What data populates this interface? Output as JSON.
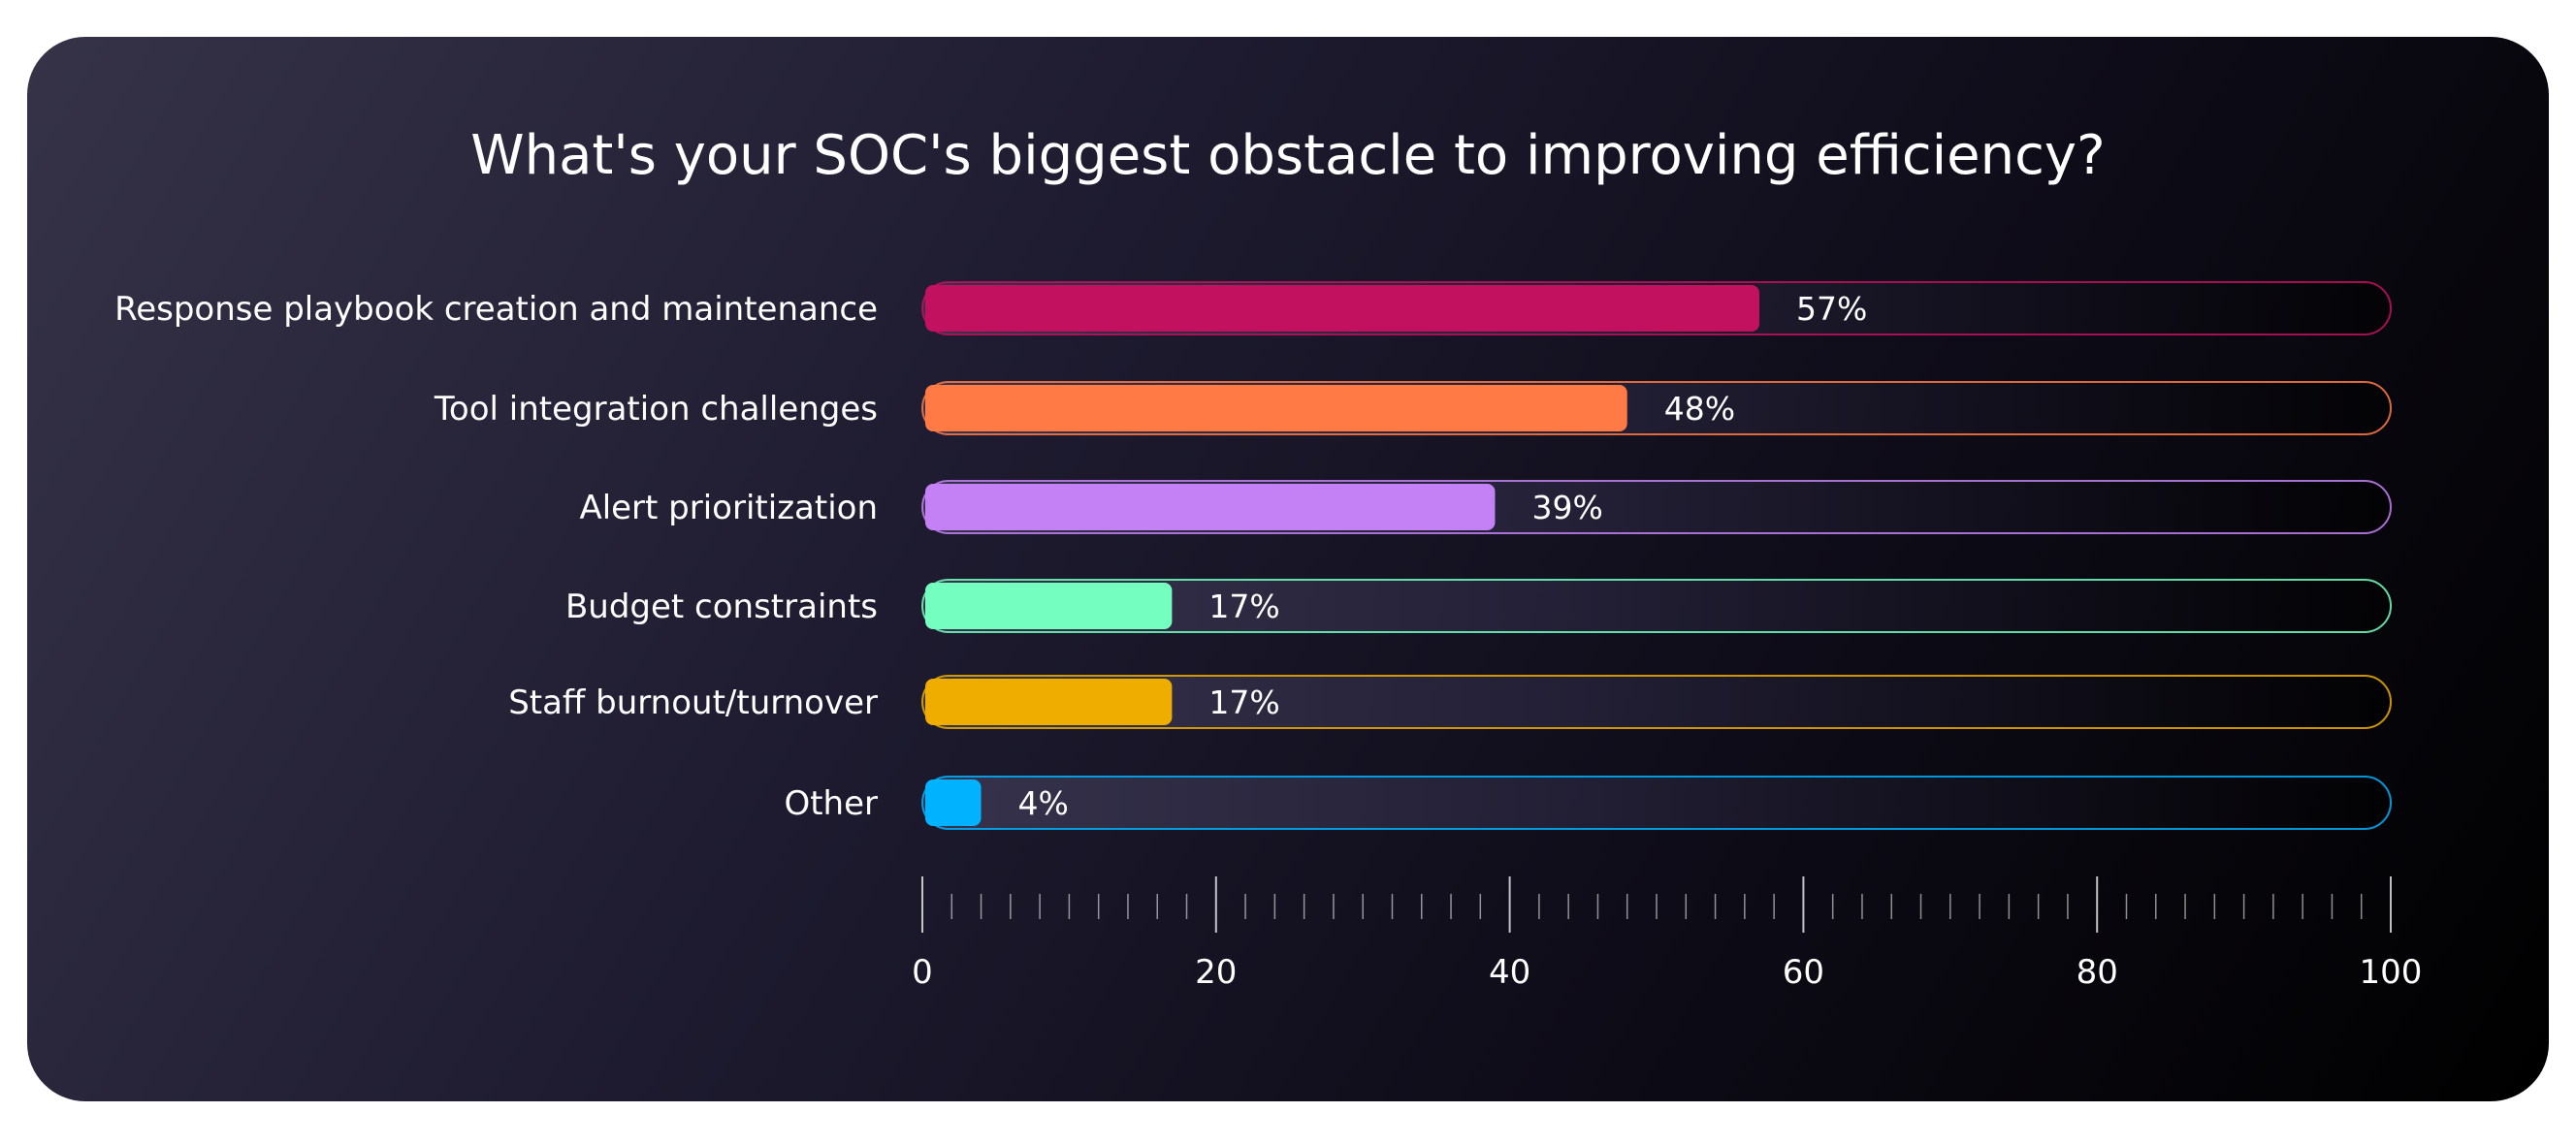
{
  "chart_data": {
    "type": "bar",
    "orientation": "horizontal",
    "title": "What's your SOC's biggest obstacle to improving efficiency?",
    "categories": [
      "Response playbook creation and maintenance",
      "Tool integration challenges",
      "Alert prioritization",
      "Budget constraints",
      "Staff burnout/turnover",
      "Other"
    ],
    "values": [
      57,
      48,
      39,
      17,
      17,
      4
    ],
    "value_labels": [
      "57%",
      "48%",
      "39%",
      "17%",
      "17%",
      "4%"
    ],
    "colors": [
      "#c2115e",
      "#ff7a45",
      "#c481f5",
      "#74ffc1",
      "#efad00",
      "#00b2ff"
    ],
    "xlim": [
      0,
      100
    ],
    "xticks": [
      0,
      20,
      40,
      60,
      80,
      100
    ],
    "xtick_labels": [
      "0",
      "20",
      "40",
      "60",
      "80",
      "100"
    ],
    "minor_tick_step": 2,
    "grid": false,
    "legend": "none"
  }
}
